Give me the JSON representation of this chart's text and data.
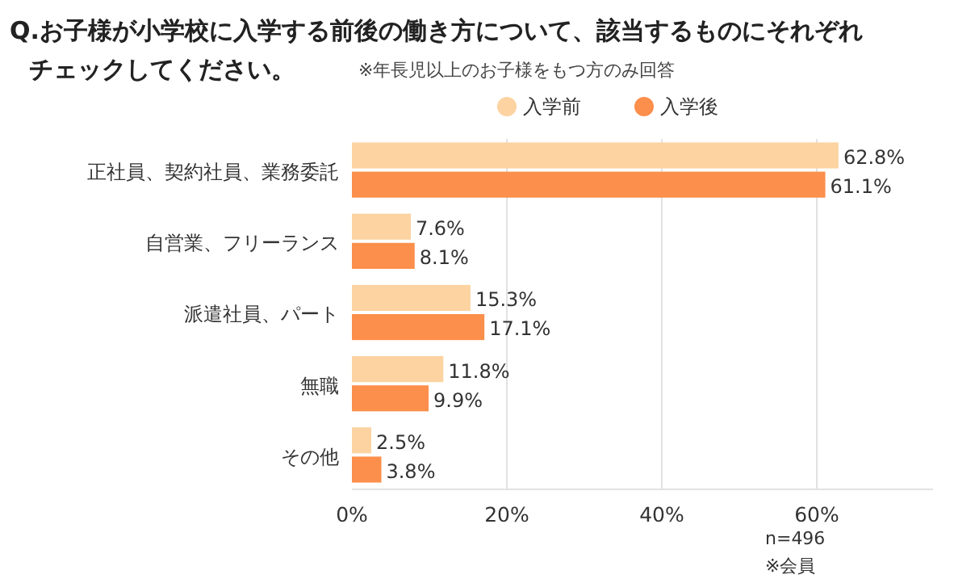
{
  "chart_data": {
    "type": "bar",
    "orientation": "horizontal",
    "title": "Q.お子様が小学校に入学する前後の働き方について、該当するものにそれぞれチェックしてください。",
    "subtitle": "※年長児以上のお子様をもつ方のみ回答",
    "categories": [
      "正社員、契約社員、業務委託",
      "自営業、フリーランス",
      "派遣社員、パート",
      "無職",
      "その他"
    ],
    "series": [
      {
        "name": "入学前",
        "color": "#fcd3a1",
        "values": [
          62.8,
          7.6,
          15.3,
          11.8,
          2.5
        ],
        "value_labels": [
          "62.8%",
          "7.6%",
          "15.3%",
          "11.8%",
          "2.5%"
        ]
      },
      {
        "name": "入学後",
        "color": "#fb8f4b",
        "values": [
          61.1,
          8.1,
          17.1,
          9.9,
          3.8
        ],
        "value_labels": [
          "61.1%",
          "8.1%",
          "17.1%",
          "9.9%",
          "3.8%"
        ]
      }
    ],
    "xlim": [
      0,
      75
    ],
    "xticks": [
      {
        "value": 0,
        "label": "0%"
      },
      {
        "value": 20,
        "label": "20%"
      },
      {
        "value": 40,
        "label": "40%"
      },
      {
        "value": 60,
        "label": "60%"
      }
    ],
    "grid": "x",
    "legend": "top",
    "annotations": [
      "n=496",
      "※会員"
    ]
  }
}
